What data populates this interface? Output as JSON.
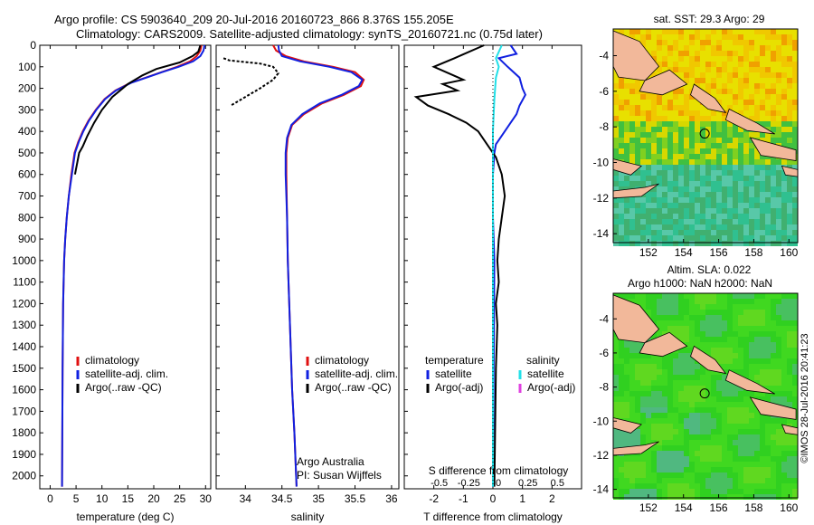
{
  "header": {
    "line1": "Argo profile: CS 5903640_209 20-Jul-2016 20160723_866 8.376S 155.205E",
    "line2": "Climatology: CARS2009. Satellite-adjusted climatology: synTS_20160721.nc (0.75d later)"
  },
  "colors": {
    "climatology": "#e01010",
    "satellite": "#1020e0",
    "argo": "#000000",
    "sal_satellite": "#22e0e8",
    "sal_argo": "#e040e0"
  },
  "chart_data": [
    {
      "type": "line",
      "xlabel": "temperature (deg C)",
      "ylabel": "",
      "xlim": [
        -2,
        31
      ],
      "ylim": [
        2060,
        0
      ],
      "xticks": [
        0,
        5,
        10,
        15,
        20,
        25,
        30
      ],
      "yticks": [
        0,
        100,
        200,
        300,
        400,
        500,
        600,
        700,
        800,
        900,
        1000,
        1100,
        1200,
        1300,
        1400,
        1500,
        1600,
        1700,
        1800,
        1900,
        2000
      ],
      "legend": [
        "climatology",
        "satellite-adj. clim.",
        "Argo(..raw -QC)"
      ],
      "series": [
        {
          "name": "climatology",
          "color": "#e01010",
          "x": [
            29.2,
            29,
            28.3,
            27,
            24.5,
            21.5,
            18.5,
            15.5,
            12.6,
            10.5,
            8.8,
            7.4,
            6.3,
            5.4,
            4.7,
            4.1,
            3.6,
            3.2,
            2.9,
            2.7,
            2.5,
            2.4,
            2.3
          ],
          "y": [
            0,
            25,
            50,
            75,
            100,
            125,
            150,
            175,
            210,
            250,
            300,
            350,
            400,
            450,
            500,
            600,
            700,
            800,
            900,
            1000,
            1200,
            1500,
            2050
          ]
        },
        {
          "name": "satellite-adj. clim.",
          "color": "#1020e0",
          "x": [
            29.8,
            29.6,
            29,
            27.6,
            24.8,
            21.6,
            18.6,
            15.6,
            12.7,
            10.6,
            8.9,
            7.5,
            6.4,
            5.5,
            4.8,
            4.2,
            3.6,
            3.2,
            2.9,
            2.7,
            2.5,
            2.4,
            2.3
          ],
          "y": [
            0,
            25,
            50,
            75,
            100,
            125,
            150,
            175,
            210,
            250,
            300,
            350,
            400,
            450,
            500,
            600,
            700,
            800,
            900,
            1000,
            1200,
            1500,
            2050
          ]
        },
        {
          "name": "Argo(..raw -QC)",
          "color": "#000000",
          "x": [
            29,
            28.6,
            27.5,
            25,
            20.5,
            17.8,
            15,
            12,
            10,
            8.5,
            7.2,
            6.3,
            5.6,
            4.8
          ],
          "y": [
            0,
            30,
            50,
            80,
            110,
            140,
            180,
            240,
            300,
            360,
            420,
            470,
            500,
            600
          ]
        }
      ]
    },
    {
      "type": "line",
      "xlabel": "salinity",
      "xlim": [
        33.6,
        36.1
      ],
      "ylim": [
        2060,
        0
      ],
      "xticks": [
        34,
        34.5,
        35,
        35.5,
        36
      ],
      "legend": [
        "climatology",
        "satellite-adj. clim.",
        "Argo(..raw -QC)"
      ],
      "annotation": [
        "Argo Australia",
        "PI: Susan Wijffels"
      ],
      "series": [
        {
          "name": "climatology",
          "color": "#e01010",
          "x": [
            34.38,
            34.42,
            34.55,
            34.8,
            35.2,
            35.5,
            35.62,
            35.58,
            35.35,
            35.05,
            34.8,
            34.64,
            34.58,
            34.56,
            34.56,
            34.57,
            34.58,
            34.6,
            34.62,
            34.64,
            34.67,
            34.7
          ],
          "y": [
            0,
            25,
            50,
            75,
            100,
            125,
            160,
            190,
            230,
            270,
            320,
            370,
            430,
            500,
            600,
            800,
            1000,
            1200,
            1400,
            1600,
            1800,
            2050
          ]
        },
        {
          "name": "satellite-adj. clim.",
          "color": "#1020e0",
          "x": [
            34.45,
            34.46,
            34.5,
            34.75,
            35.15,
            35.45,
            35.6,
            35.55,
            35.32,
            35.02,
            34.78,
            34.63,
            34.57,
            34.55,
            34.55,
            34.57,
            34.58,
            34.6,
            34.62,
            34.64,
            34.67,
            34.7
          ],
          "y": [
            0,
            25,
            50,
            75,
            100,
            125,
            160,
            190,
            230,
            270,
            320,
            370,
            430,
            500,
            600,
            800,
            1000,
            1200,
            1400,
            1600,
            1800,
            2050
          ]
        },
        {
          "name": "Argo(..raw -QC)",
          "color": "#000000",
          "x": [
            33.7,
            33.78,
            34,
            34.2,
            34.38,
            34.45,
            34.38,
            34.2,
            34.0,
            33.8
          ],
          "y": [
            60,
            70,
            78,
            85,
            100,
            130,
            160,
            200,
            240,
            280
          ]
        }
      ]
    },
    {
      "type": "line",
      "xlabel": "T difference from climatology",
      "xlabel_top": "S difference from climatology",
      "xlim": [
        -3,
        3
      ],
      "ylim": [
        2060,
        0
      ],
      "xticks": [
        -2,
        -1,
        0,
        1,
        2
      ],
      "xticks_top": [
        -0.5,
        -0.25,
        0,
        0.25,
        0.5
      ],
      "legend_left": [
        "temperature",
        "satellite",
        "Argo(-adj)"
      ],
      "legend_right": [
        "salinity",
        "satellite",
        "Argo(-adj)"
      ],
      "series": [
        {
          "name": "satellite",
          "color": "#1020e0",
          "x": [
            0.6,
            0.8,
            0.2,
            0.5,
            0.9,
            1.0,
            1.1,
            0.9,
            0.8,
            0.6,
            0.3,
            0.1,
            0.05,
            0,
            0,
            0.05,
            0
          ],
          "y": [
            0,
            40,
            60,
            100,
            150,
            200,
            230,
            280,
            320,
            360,
            420,
            460,
            500,
            600,
            800,
            1000,
            2050
          ]
        },
        {
          "name": "Argo(-adj)",
          "color": "#000000",
          "x": [
            -0.3,
            -1.3,
            -2,
            -1.5,
            -1,
            -1.7,
            -1.2,
            -2.6,
            -2.2,
            -1.5,
            -0.9,
            -0.5,
            -0.2,
            0.1,
            0.3,
            0.4,
            0.3,
            0.2,
            0.15,
            0.2,
            0.1,
            0.15,
            0.1,
            0.05
          ],
          "y": [
            0,
            60,
            100,
            130,
            160,
            180,
            210,
            240,
            280,
            320,
            360,
            400,
            460,
            520,
            600,
            700,
            800,
            900,
            1000,
            1100,
            1200,
            1300,
            1500,
            2050
          ]
        },
        {
          "name": "satellite",
          "color": "#22e0e8",
          "x": [
            0.3,
            0.1,
            0.2,
            0.1,
            0.05,
            0,
            0,
            0,
            0
          ],
          "y": [
            0,
            60,
            100,
            150,
            250,
            400,
            600,
            1000,
            2050
          ]
        }
      ]
    },
    {
      "type": "heatmap",
      "title": "sat. SST: 29.3 Argo: 29",
      "xlim": [
        150,
        160.5
      ],
      "ylim": [
        -14.5,
        -2.5
      ],
      "xticks": [
        152,
        154,
        156,
        158,
        160
      ],
      "yticks": [
        -4,
        -6,
        -8,
        -10,
        -12,
        -14
      ],
      "marker": {
        "lon": 155.205,
        "lat": -8.376
      }
    },
    {
      "type": "heatmap",
      "title_lines": [
        "Altim. SLA: 0.022",
        "Argo h1000: NaN h2000: NaN"
      ],
      "xlim": [
        150,
        160.5
      ],
      "ylim": [
        -14.5,
        -2.5
      ],
      "xticks": [
        152,
        154,
        156,
        158,
        160
      ],
      "yticks": [
        -4,
        -6,
        -8,
        -10,
        -12,
        -14
      ],
      "marker": {
        "lon": 155.205,
        "lat": -8.376
      }
    }
  ],
  "stamp": "©IMOS 28-Jul-2016 20:41:23"
}
